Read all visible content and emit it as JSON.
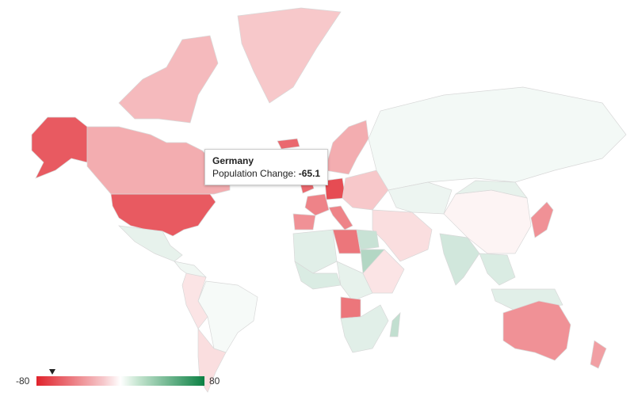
{
  "tooltip": {
    "country": "Germany",
    "label": "Population Change: ",
    "value": "-65.1"
  },
  "legend": {
    "min": "-80",
    "max": "80",
    "min_value": -80,
    "max_value": 80,
    "marker_value": -65.1,
    "colors": {
      "negative": "#e0232c",
      "neutral": "#ffffff",
      "positive": "#0b8043"
    }
  },
  "regions": [
    {
      "name": "United States",
      "value": -60
    },
    {
      "name": "Alaska",
      "value": -60
    },
    {
      "name": "Canada",
      "value": -30
    },
    {
      "name": "Canadian Arctic",
      "value": -25
    },
    {
      "name": "Greenland",
      "value": -20
    },
    {
      "name": "Iceland",
      "value": -55
    },
    {
      "name": "Mexico",
      "value": 8
    },
    {
      "name": "Central America",
      "value": 5
    },
    {
      "name": "Brazil",
      "value": 3
    },
    {
      "name": "South America West",
      "value": -10
    },
    {
      "name": "Argentina",
      "value": -12
    },
    {
      "name": "United Kingdom",
      "value": -55
    },
    {
      "name": "France",
      "value": -45
    },
    {
      "name": "Spain",
      "value": -40
    },
    {
      "name": "Germany",
      "value": -65.1
    },
    {
      "name": "Italy",
      "value": -45
    },
    {
      "name": "Scandinavia",
      "value": -30
    },
    {
      "name": "Eastern Europe",
      "value": -20
    },
    {
      "name": "Russia",
      "value": 4
    },
    {
      "name": "Kazakhstan",
      "value": 6
    },
    {
      "name": "China",
      "value": -4
    },
    {
      "name": "Mongolia",
      "value": 8
    },
    {
      "name": "India",
      "value": 15
    },
    {
      "name": "Middle East",
      "value": -12
    },
    {
      "name": "Japan",
      "value": -40
    },
    {
      "name": "Southeast Asia",
      "value": 12
    },
    {
      "name": "Indonesia",
      "value": 10
    },
    {
      "name": "Australia",
      "value": -40
    },
    {
      "name": "New Zealand",
      "value": -35
    },
    {
      "name": "North-West Africa",
      "value": 10
    },
    {
      "name": "Libya",
      "value": -50
    },
    {
      "name": "Egypt",
      "value": 18
    },
    {
      "name": "Sudan",
      "value": 25
    },
    {
      "name": "West Africa",
      "value": 12
    },
    {
      "name": "Central Africa",
      "value": 8
    },
    {
      "name": "East Africa",
      "value": -10
    },
    {
      "name": "Angola",
      "value": -50
    },
    {
      "name": "Southern Africa",
      "value": 10
    },
    {
      "name": "Madagascar",
      "value": 20
    }
  ]
}
